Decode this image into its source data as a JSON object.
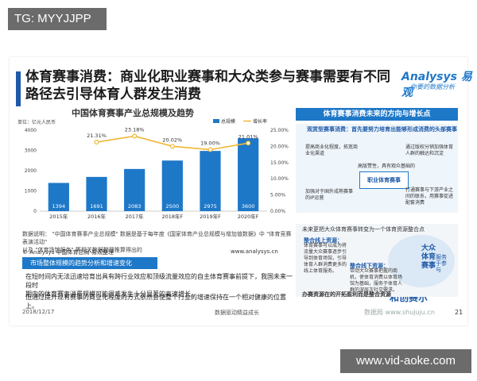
{
  "overlay": {
    "tag": "TG: MYYJJPP",
    "url": "www.vid-aoke.com"
  },
  "slide": {
    "title_line1": "体育赛事消费：商业化职业赛事和大众类参与赛事需要有不同",
    "title_line2": "路径去引导体育人群发生消费",
    "logo": "Analysys 易观",
    "logo_sub": "你要的数据分析",
    "chart_title": "中国体育赛事产业总规模及趋势",
    "foot_note_1": "数据说明：  \"中国体育赛事产业总规模\" 数据是基于每年度《国家体育产业总规模与增加值数据》中 \"体育竞赛表演活动\"",
    "foot_note_2": "以及 \"体育场馆服务\" 等相关数据整理推算得出的",
    "source_left": "© Analysys 中国体育总局-易观整理",
    "source_right": "www.analysys.cn",
    "section_label": "市场整体规模的趋势分析和增速变化",
    "bullet_1a": "在短时间内无法迅速培育出具有跨行业效应和顶级流量效应的自主体育赛事前提下，我国未来一段时",
    "bullet_1b": "期内的体育赛事消费规模可能很难发生十分显著的高速增长。",
    "bullet_2": "但通过提升现有赛事的商业化程度的方式依然会使整个行业的增速保持在一个相对健康的位置上。",
    "bottom_date": "2018/12/17",
    "bottom_mid": "数据驱动精益成长",
    "page_num": "21",
    "watermark_logo": "和创赛尔",
    "watermark_site": "数据局 www.shujuju.cn"
  },
  "diagram": {
    "head": "体育赛事消费未来的方向与增长点",
    "sub": "观赏型赛事消费：首先要努力培育出能够形成消费的头部赛事",
    "left_top": "提高商业化程度，拓宽商业化渠道",
    "right_top": "通过版权分销加强体育人群的触达和沉淀",
    "center_left": "高版赞性，具有观众基础的",
    "center_box": "职业体育赛事",
    "left_bottom": "加强对于国外成熟赛事的IP运营",
    "right_bottom": "打通赛事与下游产业之间的联系，用赛事促进配套消费",
    "p2_head": "未来更把大众体育赛事转变为一个体育资源整合点",
    "p2_label1": "整合线上资源：",
    "p2_desc1": "体育赛事可以成为将流量大众赛事逐步引导到体育场馆，引导体育人群消费更多的线上体育服务。",
    "p2_label2": "整合线下资源：",
    "p2_desc2": "带动大众赛事把握的商机，使体育消费以体育场馆为基础，服务于体育人群的深层次社交需求。",
    "circle_text": "大众体育赛事",
    "circle_small": "服务于参与",
    "p2_bottom": "办赛资源在的开拓盈利而是整合资源"
  },
  "chart_data": {
    "type": "bar",
    "title": "中国体育赛事产业总规模及趋势",
    "ylabel": "单位：亿元人民币",
    "categories": [
      "2015年",
      "2016年",
      "2017年",
      "2018年F",
      "2019年F",
      "2020年F"
    ],
    "series": [
      {
        "name": "总规模",
        "kind": "bar",
        "values": [
          1394,
          1691,
          2083,
          2500,
          2975,
          3600
        ],
        "color": "#1e78c8"
      },
      {
        "name": "增长率",
        "kind": "line",
        "values": [
          null,
          21.31,
          23.18,
          20.02,
          19.0,
          21.01
        ],
        "labels": [
          "",
          "21.31%",
          "23.18%",
          "20.02%",
          "19.00%",
          "21.01%"
        ],
        "color": "#f0b732"
      }
    ],
    "ylim_left": [
      0,
      4000
    ],
    "yticks_left": [
      "0",
      "1000",
      "2000",
      "3000",
      "4000"
    ],
    "ylim_right": [
      0,
      25
    ],
    "yticks_right": [
      "0.00%",
      "5.00%",
      "10.00%",
      "15.00%",
      "20.00%",
      "25.00%"
    ],
    "legend": [
      "总规模",
      "增长率"
    ],
    "legend_position": "top-right",
    "grid": false
  }
}
